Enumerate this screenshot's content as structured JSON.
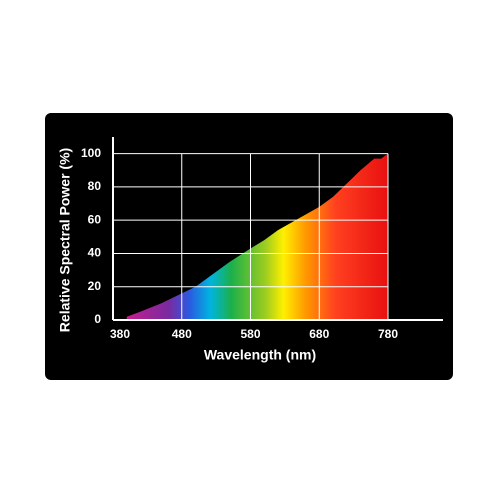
{
  "chart_data": {
    "type": "area",
    "x_label": "Wavelength (nm)",
    "y_label": "Relative Spectral Power (%)",
    "x": [
      400,
      420,
      450,
      480,
      500,
      520,
      550,
      580,
      600,
      620,
      650,
      680,
      700,
      720,
      740,
      760,
      770,
      780
    ],
    "values": [
      2,
      5,
      10,
      16,
      20,
      26,
      35,
      43,
      48,
      54,
      61,
      68,
      74,
      82,
      90,
      97,
      97,
      100
    ],
    "xlim": [
      380,
      860
    ],
    "xticks": [
      380,
      480,
      580,
      680,
      780
    ],
    "ylim": [
      0,
      110
    ],
    "yticks": [
      0,
      20,
      40,
      60,
      80,
      100
    ],
    "grid": true
  }
}
